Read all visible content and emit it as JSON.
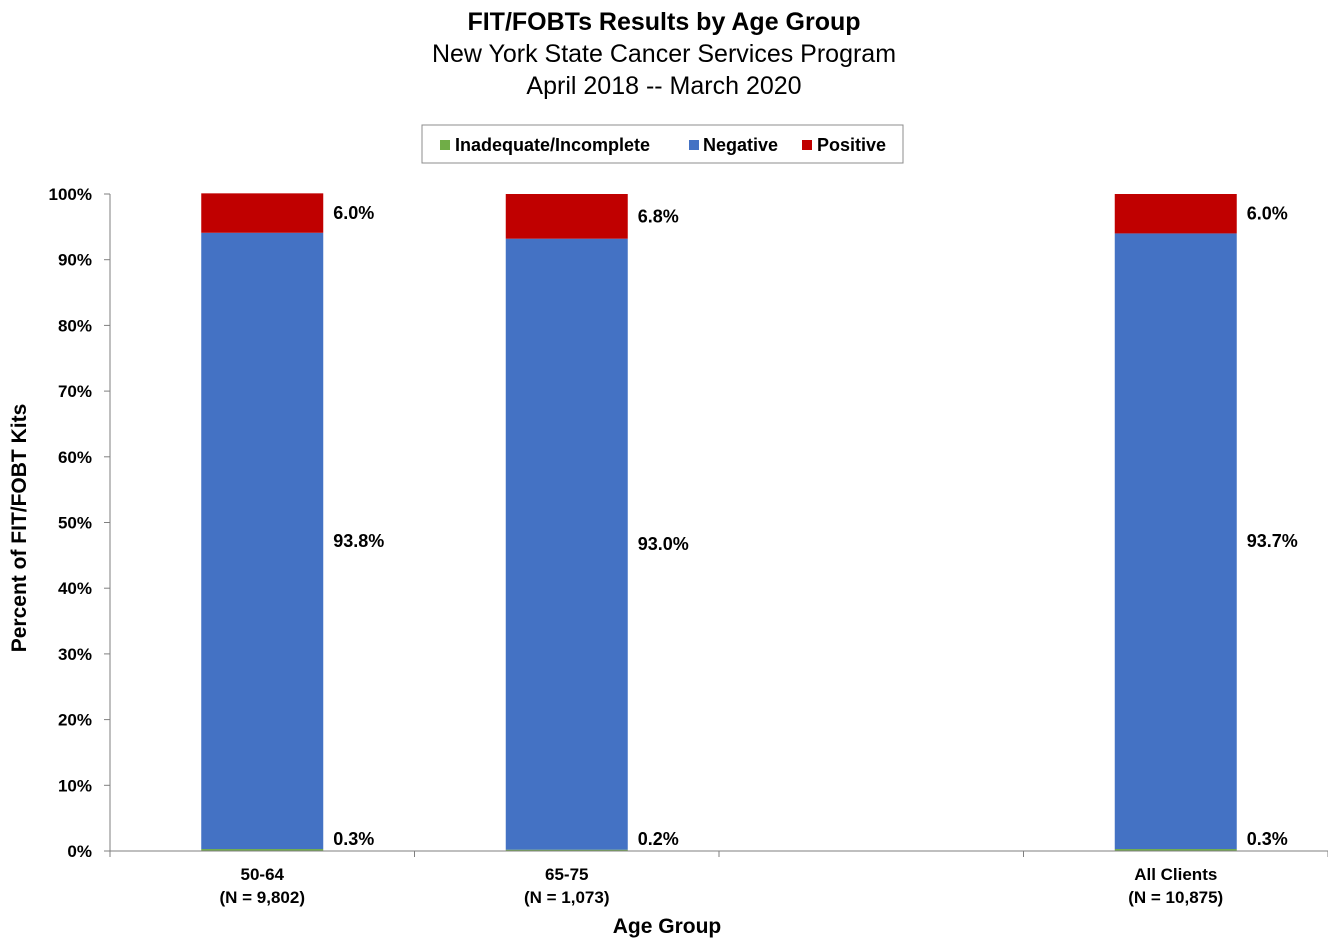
{
  "chart_data": {
    "type": "bar",
    "stacked": true,
    "title": "FIT/FOBTs Results by Age Group",
    "subtitle_lines": [
      "New York State Cancer Services Program",
      "April 2018 -- March 2020"
    ],
    "xlabel": "Age Group",
    "ylabel": "Percent of FIT/FOBT Kits",
    "ylim": [
      0,
      100
    ],
    "y_ticks": [
      "0%",
      "10%",
      "20%",
      "30%",
      "40%",
      "50%",
      "60%",
      "70%",
      "80%",
      "90%",
      "100%"
    ],
    "grid": false,
    "legend_position": "top-center",
    "categories": [
      {
        "name": "50-64",
        "n_label": "(N = 9,802)"
      },
      {
        "name": "65-75",
        "n_label": "(N = 1,073)"
      },
      {
        "name": "",
        "n_label": ""
      },
      {
        "name": "All Clients",
        "n_label": "(N = 10,875)"
      }
    ],
    "series": [
      {
        "name": "Inadequate/Incomplete",
        "color": "#70ad47",
        "values": [
          0.3,
          0.2,
          null,
          0.3
        ],
        "labels": [
          "0.3%",
          "0.2%",
          "",
          "0.3%"
        ]
      },
      {
        "name": "Negative",
        "color": "#4472c4",
        "values": [
          93.8,
          93.0,
          null,
          93.7
        ],
        "labels": [
          "93.8%",
          "93.0%",
          "",
          "93.7%"
        ]
      },
      {
        "name": "Positive",
        "color": "#c00000",
        "values": [
          6.0,
          6.8,
          null,
          6.0
        ],
        "labels": [
          "6.0%",
          "6.8%",
          "",
          "6.0%"
        ]
      }
    ]
  }
}
